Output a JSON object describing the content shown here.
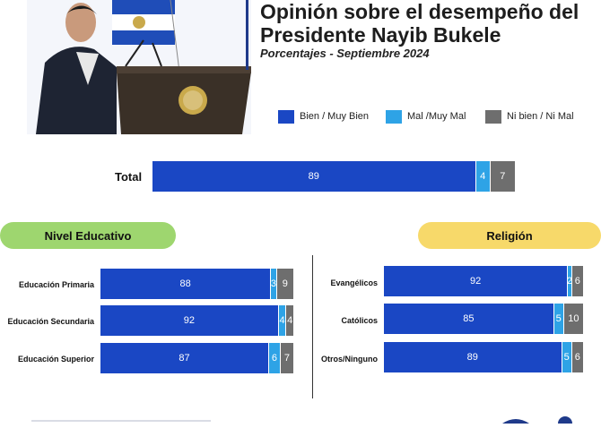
{
  "header": {
    "title_line1": "Opinión sobre el desempeño del",
    "title_line2": "Presidente Nayib Bukele",
    "subtitle": "Porcentajes - Septiembre 2024"
  },
  "legend": [
    {
      "label": "Bien / Muy Bien",
      "color": "#1a47c4"
    },
    {
      "label": "Mal /Muy Mal",
      "color": "#2ea3e6"
    },
    {
      "label": "Ni bien / Ni Mal",
      "color": "#6e6e6e"
    }
  ],
  "sections": {
    "left_title": "Nivel Educativo",
    "right_title": "Religión"
  },
  "chart_data": [
    {
      "type": "bar",
      "orientation": "horizontal",
      "stacked": true,
      "categories": [
        "Total"
      ],
      "series": [
        {
          "name": "Bien / Muy Bien",
          "values": [
            89
          ]
        },
        {
          "name": "Mal /Muy Mal",
          "values": [
            4
          ]
        },
        {
          "name": "Ni bien / Ni Mal",
          "values": [
            7
          ]
        }
      ]
    },
    {
      "type": "bar",
      "orientation": "horizontal",
      "stacked": true,
      "title": "Nivel Educativo",
      "categories": [
        "Educación Primaria",
        "Educación Secundaria",
        "Educación Superior"
      ],
      "series": [
        {
          "name": "Bien / Muy Bien",
          "values": [
            88,
            92,
            87
          ]
        },
        {
          "name": "Mal /Muy Mal",
          "values": [
            3,
            4,
            6
          ]
        },
        {
          "name": "Ni bien / Ni Mal",
          "values": [
            9,
            4,
            7
          ]
        }
      ]
    },
    {
      "type": "bar",
      "orientation": "horizontal",
      "stacked": true,
      "title": "Religión",
      "categories": [
        "Evangélicos",
        "Católicos",
        "Otros/Ninguno"
      ],
      "series": [
        {
          "name": "Bien / Muy Bien",
          "values": [
            92,
            85,
            89
          ]
        },
        {
          "name": "Mal /Muy Mal",
          "values": [
            2,
            5,
            5
          ]
        },
        {
          "name": "Ni bien / Ni Mal",
          "values": [
            6,
            10,
            6
          ]
        }
      ]
    }
  ],
  "colors": {
    "left_pill": "#9ed66f",
    "right_pill": "#f7d96a",
    "accent_line": "#1f3a8a",
    "flag_blue": "#1f4db8"
  }
}
